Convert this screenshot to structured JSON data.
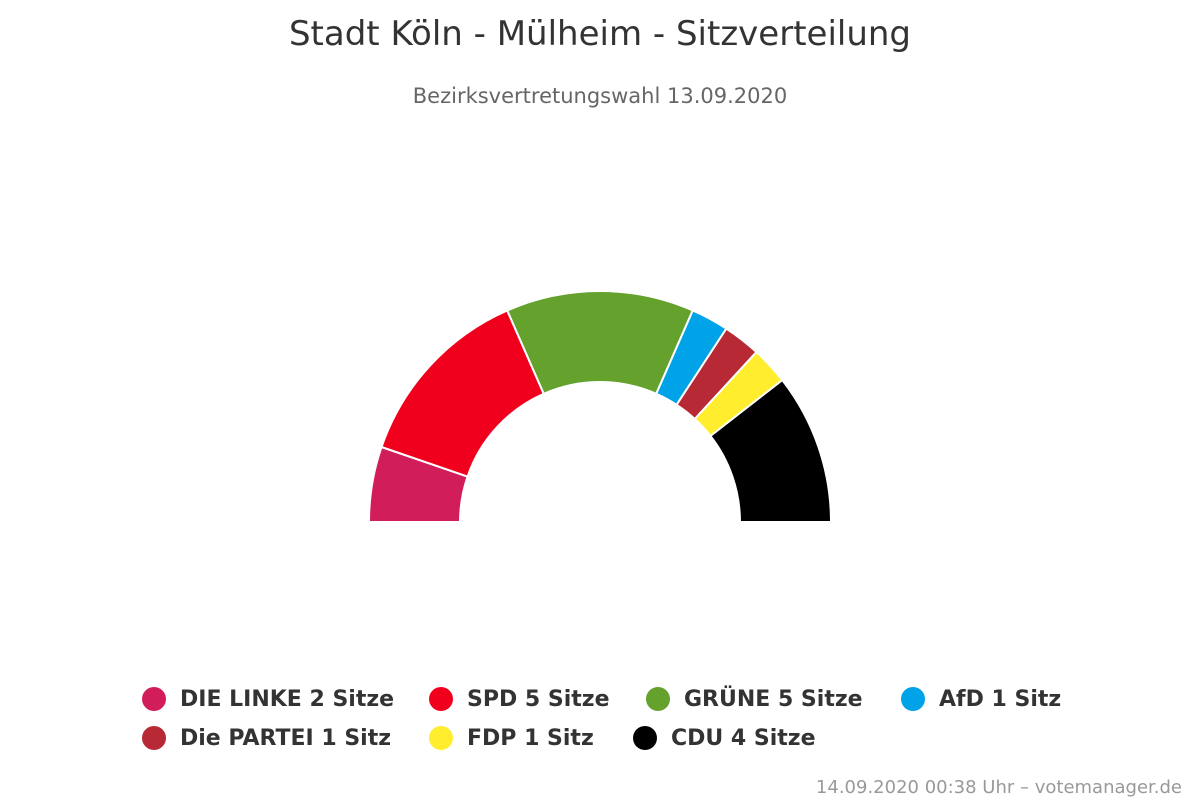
{
  "chart_data": {
    "type": "pie",
    "variant": "semicircle",
    "title": "Stadt Köln - Mülheim - Sitzverteilung",
    "subtitle": "Bezirksvertretungswahl 13.09.2020",
    "legend_position": "bottom",
    "categories": [
      "DIE LINKE",
      "SPD",
      "GRÜNE",
      "AfD",
      "Die PARTEI",
      "FDP",
      "CDU"
    ],
    "values": [
      2,
      5,
      5,
      1,
      1,
      1,
      4
    ],
    "colors": [
      "#d21d5b",
      "#f0001c",
      "#64a12d",
      "#00a2e8",
      "#b82936",
      "#ffed2e",
      "#000000"
    ],
    "legend_labels": [
      "DIE LINKE 2 Sitze",
      "SPD 5 Sitze",
      "GRÜNE 5 Sitze",
      "AfD 1 Sitz",
      "Die PARTEI 1 Sitz",
      "FDP 1 Sitz",
      "CDU 4 Sitze"
    ]
  },
  "credit": "14.09.2020 00:38 Uhr – votemanager.de"
}
